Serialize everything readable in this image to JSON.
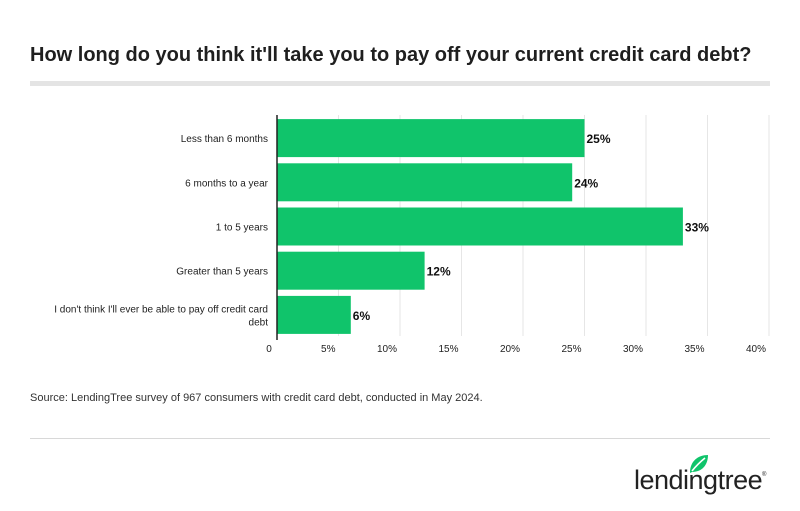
{
  "title": "How long do you think it'll take you to pay off your current credit card debt?",
  "source": "Source: LendingTree survey of 967 consumers with credit card debt, conducted in May 2024.",
  "logo": {
    "text": "lendingtree",
    "trademark": "®",
    "icon": "leaf-icon"
  },
  "colors": {
    "bar": "#10c46b",
    "grid": "#e6e6e6",
    "axis": "#222222",
    "leaf": "#10c46b"
  },
  "chart_data": {
    "type": "bar",
    "orientation": "horizontal",
    "categories": [
      [
        "Less than 6 months"
      ],
      [
        "6 months to a year"
      ],
      [
        "1 to 5 years"
      ],
      [
        "Greater than 5 years"
      ],
      [
        "I don't think I'll ever be able to pay off credit card",
        "debt"
      ]
    ],
    "values": [
      25,
      24,
      33,
      12,
      6
    ],
    "value_labels": [
      "25%",
      "24%",
      "33%",
      "12%",
      "6%"
    ],
    "xlim": [
      0,
      40
    ],
    "x_ticks": [
      0,
      5,
      10,
      15,
      20,
      25,
      30,
      35,
      40
    ],
    "x_tick_labels": [
      "0",
      "5%",
      "10%",
      "15%",
      "20%",
      "25%",
      "30%",
      "35%",
      "40%"
    ],
    "grid": true,
    "xlabel": "",
    "ylabel": ""
  }
}
